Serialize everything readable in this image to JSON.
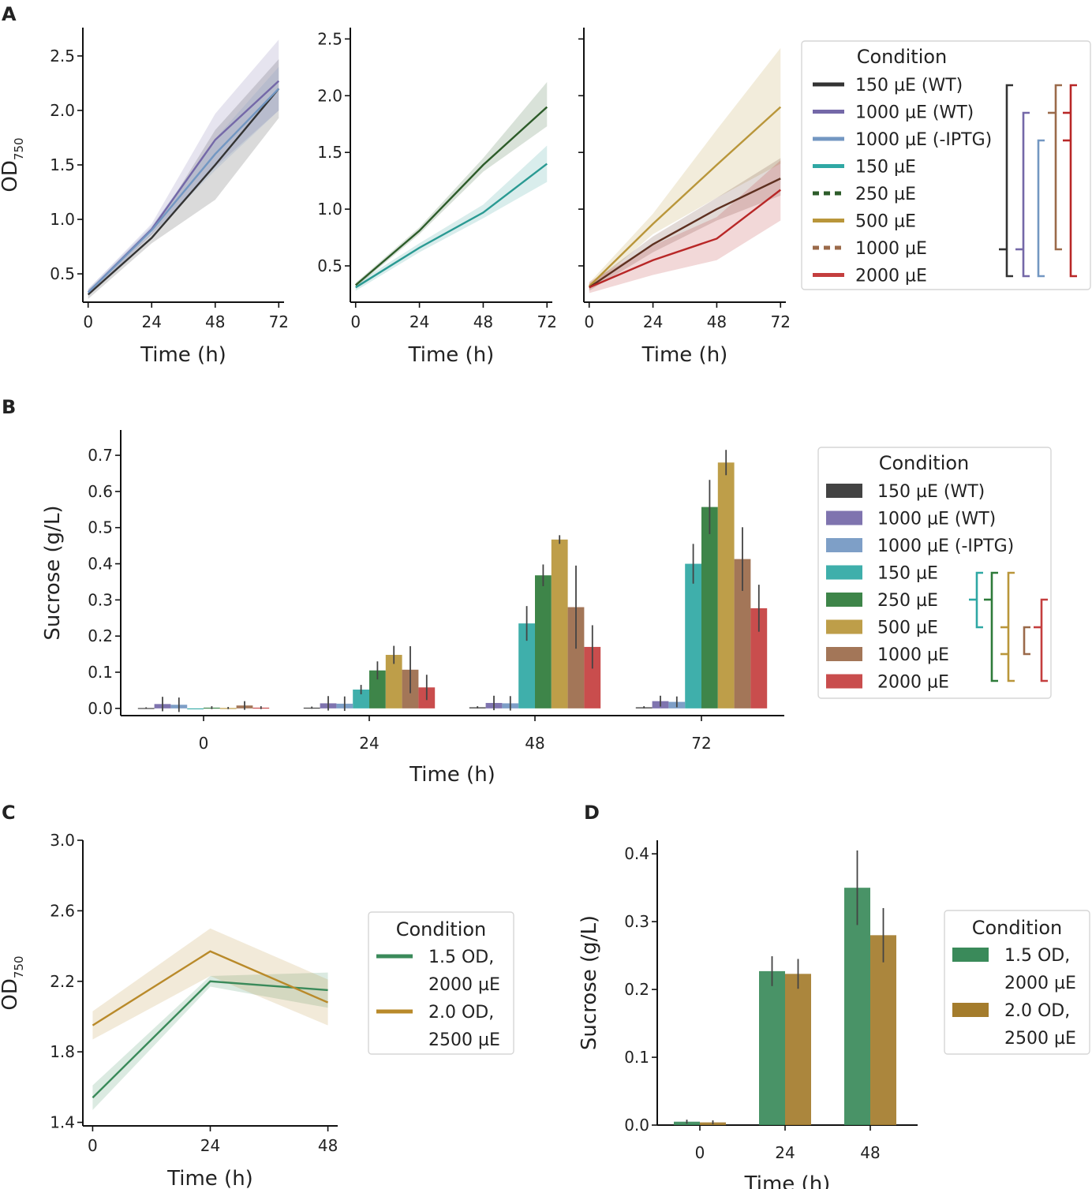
{
  "colors": {
    "wt150": "#333333",
    "wt1000": "#7468a8",
    "iptg": "#7397c2",
    "c150": "#2fa8a4",
    "c250": "#2e7b3a",
    "c500": "#b9963a",
    "c1000": "#9b6a4a",
    "c2000": "#c43e3e",
    "cA150": "#2a9a93",
    "cA250": "#2d5c2a",
    "cA1000": "#5e3020",
    "cA2000": "#b82727",
    "green": "#3a8a5a",
    "gold": "#b98a2a",
    "goldBar": "#a47c2c"
  },
  "panels": {
    "a": {
      "letter": "A"
    },
    "b": {
      "letter": "B"
    },
    "c": {
      "letter": "C"
    },
    "d": {
      "letter": "D"
    }
  },
  "legend_main": {
    "title": "Condition",
    "entries": [
      "150 µE (WT)",
      "1000 µE (WT)",
      "1000 µE (-IPTG)",
      "150 µE",
      "250 µE",
      "500 µE",
      "1000 µE",
      "2000 µE"
    ]
  },
  "legend_cd": {
    "title": "Condition",
    "entries": [
      [
        "1.5 OD,",
        "2000 µE"
      ],
      [
        "2.0 OD,",
        "2500 µE"
      ]
    ]
  },
  "chart_data": [
    {
      "id": "A1",
      "type": "line",
      "title": "",
      "xlabel": "Time (h)",
      "ylabel": "OD750",
      "x": [
        0,
        24,
        48,
        72
      ],
      "xlim": [
        -2,
        74
      ],
      "ylim": [
        0.24,
        2.76
      ],
      "xticks": [
        "0",
        "24",
        "48",
        "72"
      ],
      "yticks": [
        "0.5",
        "1.0",
        "1.5",
        "2.0",
        "2.5"
      ],
      "series": [
        {
          "name": "150 µE (WT)",
          "values": [
            0.31,
            0.83,
            1.5,
            2.2
          ],
          "lower": [
            0.27,
            0.78,
            1.18,
            1.93
          ],
          "upper": [
            0.35,
            0.88,
            1.82,
            2.47
          ]
        },
        {
          "name": "1000 µE (WT)",
          "values": [
            0.33,
            0.91,
            1.73,
            2.27
          ],
          "lower": [
            0.3,
            0.86,
            1.48,
            2.0
          ],
          "upper": [
            0.36,
            0.96,
            1.97,
            2.65
          ]
        },
        {
          "name": "1000 µE (-IPTG)",
          "values": [
            0.33,
            0.9,
            1.6,
            2.2
          ],
          "lower": [
            0.3,
            0.86,
            1.45,
            2.0
          ],
          "upper": [
            0.36,
            0.94,
            1.74,
            2.4
          ]
        }
      ]
    },
    {
      "id": "A2",
      "type": "line",
      "title": "",
      "xlabel": "Time (h)",
      "ylabel": "",
      "x": [
        0,
        24,
        48,
        72
      ],
      "xlim": [
        -2,
        74
      ],
      "ylim": [
        0.18,
        2.6
      ],
      "xticks": [
        "0",
        "24",
        "48",
        "72"
      ],
      "yticks": [
        "0.5",
        "1.0",
        "1.5",
        "2.0",
        "2.5"
      ],
      "series": [
        {
          "name": "150 µE",
          "values": [
            0.31,
            0.66,
            0.97,
            1.4
          ],
          "lower": [
            0.28,
            0.62,
            0.92,
            1.24
          ],
          "upper": [
            0.34,
            0.7,
            1.04,
            1.56
          ]
        },
        {
          "name": "250 µE",
          "values": [
            0.33,
            0.81,
            1.39,
            1.9
          ],
          "lower": [
            0.31,
            0.78,
            1.33,
            1.73
          ],
          "upper": [
            0.35,
            0.84,
            1.45,
            2.12
          ]
        }
      ]
    },
    {
      "id": "A3",
      "type": "line",
      "title": "",
      "xlabel": "Time (h)",
      "ylabel": "",
      "x": [
        0,
        24,
        48,
        72
      ],
      "xlim": [
        -2,
        74
      ],
      "ylim": [
        0.18,
        2.6
      ],
      "xticks": [
        "0",
        "24",
        "48",
        "72"
      ],
      "yticks": [],
      "series": [
        {
          "name": "500 µE",
          "values": [
            0.32,
            0.87,
            1.39,
            1.9
          ],
          "lower": [
            0.29,
            0.78,
            1.1,
            1.4
          ],
          "upper": [
            0.35,
            0.96,
            1.7,
            2.42
          ]
        },
        {
          "name": "1000 µE",
          "values": [
            0.31,
            0.69,
            1.0,
            1.27
          ],
          "lower": [
            0.28,
            0.62,
            0.9,
            1.12
          ],
          "upper": [
            0.34,
            0.76,
            1.1,
            1.45
          ]
        },
        {
          "name": "2000 µE",
          "values": [
            0.31,
            0.55,
            0.74,
            1.17
          ],
          "lower": [
            0.26,
            0.42,
            0.55,
            0.9
          ],
          "upper": [
            0.36,
            0.68,
            0.93,
            1.43
          ]
        }
      ]
    },
    {
      "id": "B",
      "type": "bar",
      "xlabel": "Time (h)",
      "ylabel": "Sucrose (g/L)",
      "categories": [
        "0",
        "24",
        "48",
        "72"
      ],
      "ylim": [
        -0.02,
        0.77
      ],
      "yticks": [
        "0.0",
        "0.1",
        "0.2",
        "0.3",
        "0.4",
        "0.5",
        "0.6",
        "0.7"
      ],
      "series": [
        {
          "name": "150 µE (WT)",
          "values": [
            0.001,
            0.002,
            0.003,
            0.003
          ],
          "err": [
            0.002,
            0.003,
            0.003,
            0.003
          ]
        },
        {
          "name": "1000 µE (WT)",
          "values": [
            0.012,
            0.014,
            0.015,
            0.02
          ],
          "err": [
            0.02,
            0.02,
            0.02,
            0.015
          ]
        },
        {
          "name": "1000 µE (-IPTG)",
          "values": [
            0.01,
            0.013,
            0.014,
            0.018
          ],
          "err": [
            0.02,
            0.02,
            0.02,
            0.015
          ]
        },
        {
          "name": "150 µE",
          "values": [
            0.0,
            0.052,
            0.235,
            0.4
          ],
          "err": [
            0.0,
            0.013,
            0.048,
            0.055
          ]
        },
        {
          "name": "250 µE",
          "values": [
            0.002,
            0.105,
            0.368,
            0.557
          ],
          "err": [
            0.004,
            0.025,
            0.03,
            0.075
          ]
        },
        {
          "name": "500 µE",
          "values": [
            0.001,
            0.148,
            0.467,
            0.68
          ],
          "err": [
            0.003,
            0.025,
            0.012,
            0.035
          ]
        },
        {
          "name": "1000 µE",
          "values": [
            0.008,
            0.107,
            0.28,
            0.413
          ],
          "err": [
            0.012,
            0.065,
            0.115,
            0.088
          ]
        },
        {
          "name": "2000 µE",
          "values": [
            0.002,
            0.058,
            0.17,
            0.277
          ],
          "err": [
            0.004,
            0.035,
            0.06,
            0.065
          ]
        }
      ]
    },
    {
      "id": "C",
      "type": "line",
      "xlabel": "Time (h)",
      "ylabel": "OD750",
      "x": [
        0,
        24,
        48
      ],
      "xlim": [
        -2,
        50
      ],
      "ylim": [
        1.38,
        3.0
      ],
      "xticks": [
        "0",
        "24",
        "48"
      ],
      "yticks": [
        "1.4",
        "1.8",
        "2.2",
        "2.6",
        "3.0"
      ],
      "series": [
        {
          "name": "1.5 OD, 2000 µE",
          "values": [
            1.54,
            2.2,
            2.15
          ],
          "lower": [
            1.47,
            2.17,
            2.05
          ],
          "upper": [
            1.61,
            2.23,
            2.25
          ]
        },
        {
          "name": "2.0 OD, 2500 µE",
          "values": [
            1.95,
            2.37,
            2.08
          ],
          "lower": [
            1.87,
            2.23,
            1.95
          ],
          "upper": [
            2.03,
            2.5,
            2.21
          ]
        }
      ]
    },
    {
      "id": "D",
      "type": "bar",
      "xlabel": "Time (h)",
      "ylabel": "Sucrose (g/L)",
      "categories": [
        "0",
        "24",
        "48"
      ],
      "ylim": [
        0,
        0.42
      ],
      "yticks": [
        "0.0",
        "0.1",
        "0.2",
        "0.3",
        "0.4"
      ],
      "series": [
        {
          "name": "1.5 OD, 2000 µE",
          "values": [
            0.005,
            0.227,
            0.35
          ],
          "err": [
            0.003,
            0.022,
            0.055
          ]
        },
        {
          "name": "2.0 OD, 2500 µE",
          "values": [
            0.004,
            0.223,
            0.28
          ],
          "err": [
            0.003,
            0.022,
            0.04
          ]
        }
      ]
    }
  ]
}
